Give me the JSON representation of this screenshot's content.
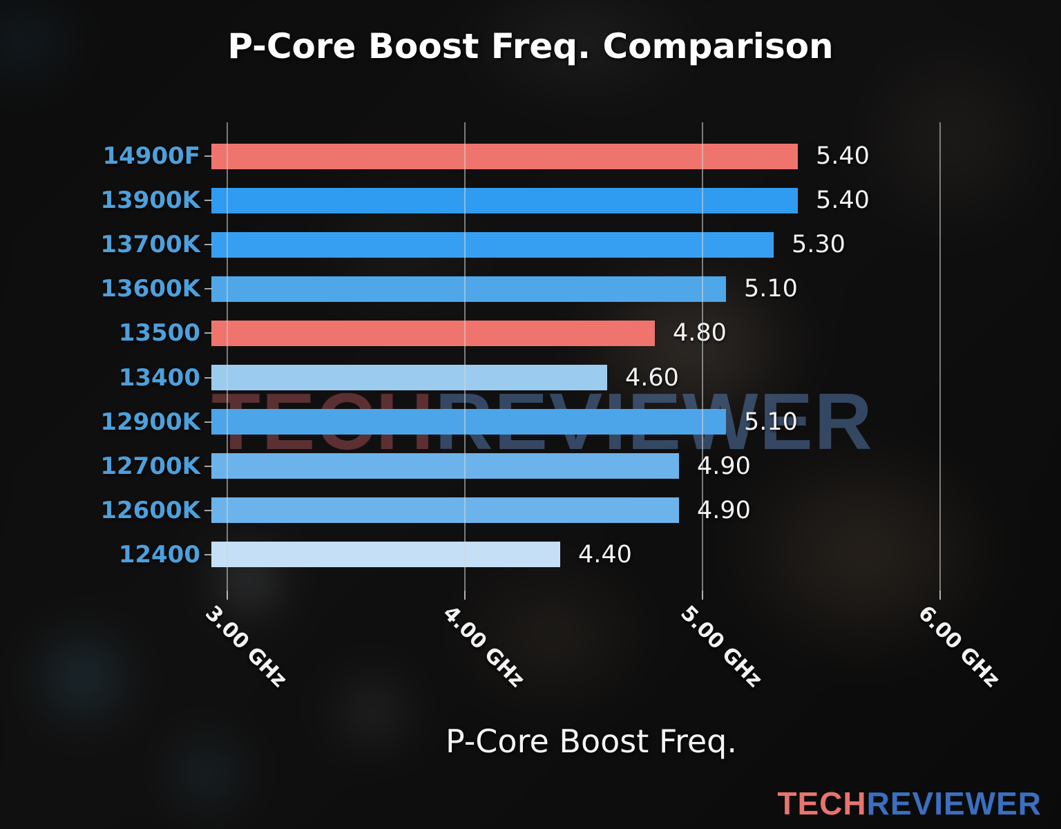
{
  "chart": {
    "title": "P-Core Boost Freq. Comparison",
    "xlabel": "P-Core Boost Freq."
  },
  "chart_data": {
    "type": "bar",
    "orientation": "horizontal",
    "title": "P-Core Boost Freq. Comparison",
    "xlabel": "P-Core Boost Freq.",
    "ylabel": "",
    "categories": [
      "14900F",
      "13900K",
      "13700K",
      "13600K",
      "13500",
      "13400",
      "12900K",
      "12700K",
      "12600K",
      "12400"
    ],
    "values": [
      5.4,
      5.4,
      5.3,
      5.1,
      4.8,
      4.6,
      5.1,
      4.9,
      4.9,
      4.4
    ],
    "value_labels": [
      "5.40",
      "5.40",
      "5.30",
      "5.10",
      "4.80",
      "4.60",
      "5.10",
      "4.90",
      "4.90",
      "4.40"
    ],
    "units": "GHz",
    "bar_colors": [
      "#F0746E",
      "#2F9CF1",
      "#379FF1",
      "#4FA7EA",
      "#F0746E",
      "#9CCBF0",
      "#4DA5E9",
      "#6CB3EB",
      "#6CB3EB",
      "#C4DFF6"
    ],
    "highlight_color": "#F0746E",
    "x_tick_labels": [
      "3.00 GHz",
      "4.00 GHz",
      "5.00 GHz",
      "6.00 GHz"
    ],
    "x_tick_values": [
      3.0,
      4.0,
      5.0,
      6.0
    ],
    "xlim": [
      2.933,
      6.28
    ],
    "grid": true,
    "gridline_color": "#D6D6D6",
    "category_label_color": "#4DA0DC",
    "value_label_color": "#F3F3F3",
    "legend": null
  },
  "watermark": {
    "part1": "TECH",
    "part2": "REVIEWER"
  },
  "brand": {
    "part1": "TECH",
    "part2": "REVIEWER",
    "part1_color": "#E8746F",
    "part2_color": "#3B6FC0"
  }
}
